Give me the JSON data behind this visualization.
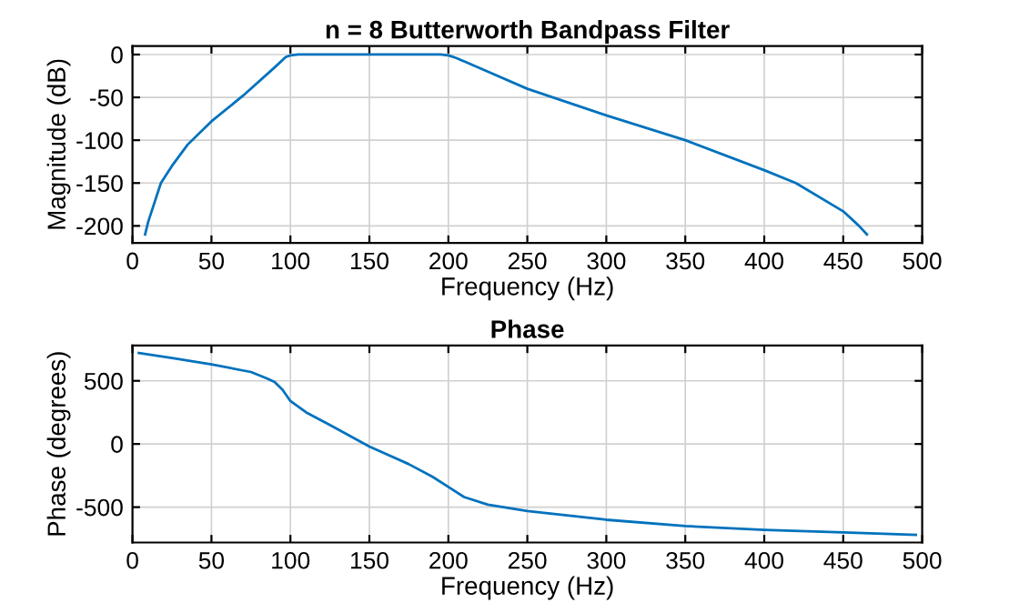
{
  "chart_data": [
    {
      "type": "line",
      "title": "n = 8 Butterworth Bandpass Filter",
      "xlabel": "Frequency (Hz)",
      "ylabel": "Magnitude (dB)",
      "xlim": [
        0,
        500
      ],
      "ylim": [
        -220,
        10
      ],
      "xticks": [
        0,
        50,
        100,
        150,
        200,
        250,
        300,
        350,
        400,
        450,
        500
      ],
      "yticks": [
        -200,
        -150,
        -100,
        -50,
        0
      ],
      "grid": true,
      "series": [
        {
          "color": "#0072bd",
          "x": [
            8,
            10,
            18,
            25,
            35,
            50,
            70,
            90,
            97,
            100,
            105,
            195,
            200,
            205,
            225,
            250,
            300,
            350,
            400,
            420,
            450,
            460,
            465
          ],
          "values": [
            -210,
            -195,
            -150,
            -130,
            -105,
            -78,
            -48,
            -15,
            -3,
            -1,
            0,
            0,
            -1,
            -4,
            -20,
            -40,
            -71,
            -100,
            -135,
            -150,
            -183,
            -200,
            -210
          ]
        }
      ]
    },
    {
      "type": "line",
      "title": "Phase",
      "xlabel": "Frequency (Hz)",
      "ylabel": "Phase (degrees)",
      "xlim": [
        0,
        500
      ],
      "ylim": [
        -780,
        780
      ],
      "xticks": [
        0,
        50,
        100,
        150,
        200,
        250,
        300,
        350,
        400,
        450,
        500
      ],
      "yticks": [
        -500,
        0,
        500
      ],
      "grid": true,
      "series": [
        {
          "color": "#0072bd",
          "x": [
            4,
            25,
            50,
            75,
            85,
            90,
            95,
            100,
            110,
            125,
            150,
            175,
            190,
            200,
            210,
            225,
            250,
            300,
            350,
            400,
            450,
            496
          ],
          "values": [
            720,
            680,
            630,
            570,
            520,
            490,
            430,
            340,
            250,
            150,
            -20,
            -160,
            -260,
            -340,
            -420,
            -480,
            -530,
            -600,
            -650,
            -680,
            -700,
            -720
          ]
        }
      ]
    }
  ]
}
